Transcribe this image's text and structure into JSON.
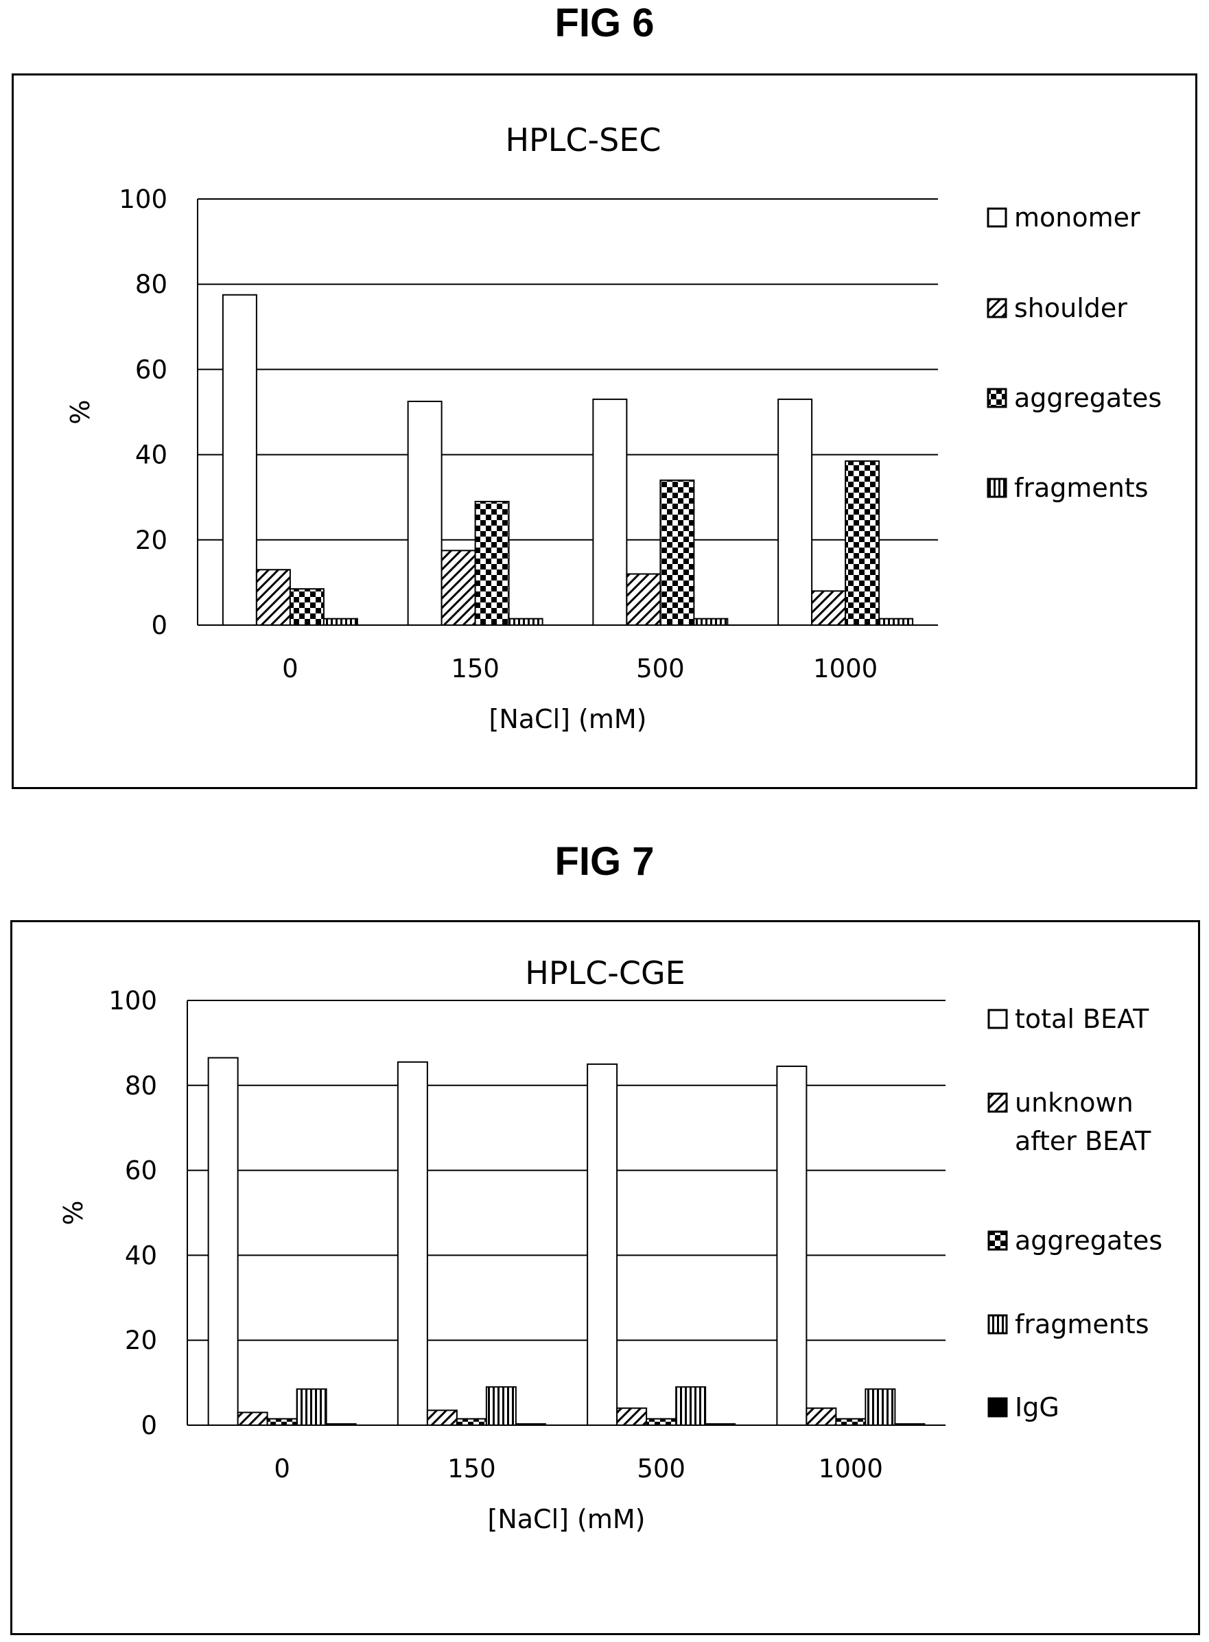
{
  "figures": [
    {
      "label": "FIG 6"
    },
    {
      "label": "FIG 7"
    }
  ],
  "chart_data": [
    {
      "type": "bar",
      "title": "HPLC-SEC",
      "xlabel": "[NaCl] (mM)",
      "ylabel": "%",
      "categories": [
        "0",
        "150",
        "500",
        "1000"
      ],
      "ylim": [
        0,
        100
      ],
      "yticks": [
        0,
        20,
        40,
        60,
        80,
        100
      ],
      "grid": true,
      "legend": "right",
      "series": [
        {
          "name": "monomer",
          "pattern": "empty",
          "values": [
            77.5,
            52.5,
            53,
            53
          ]
        },
        {
          "name": "shoulder",
          "pattern": "diagonal",
          "values": [
            13,
            17.5,
            12,
            8
          ]
        },
        {
          "name": "aggregates",
          "pattern": "checker",
          "values": [
            8.5,
            29,
            34,
            38.5
          ]
        },
        {
          "name": "fragments",
          "pattern": "vertical",
          "values": [
            1.5,
            1.5,
            1.5,
            1.5
          ]
        }
      ]
    },
    {
      "type": "bar",
      "title": "HPLC-CGE",
      "xlabel": "[NaCl] (mM)",
      "ylabel": "%",
      "categories": [
        "0",
        "150",
        "500",
        "1000"
      ],
      "ylim": [
        0,
        100
      ],
      "yticks": [
        0,
        20,
        40,
        60,
        80,
        100
      ],
      "grid": true,
      "legend": "right",
      "series": [
        {
          "name": "total BEAT",
          "pattern": "empty",
          "values": [
            86.5,
            85.5,
            85,
            84.5
          ]
        },
        {
          "name": "unknown after BEAT",
          "legend_lines": [
            "unknown",
            "after BEAT"
          ],
          "pattern": "diagonal",
          "values": [
            3,
            3.5,
            4,
            4
          ]
        },
        {
          "name": "aggregates",
          "pattern": "checker",
          "values": [
            1.5,
            1.5,
            1.5,
            1.5
          ]
        },
        {
          "name": "fragments",
          "pattern": "vertical",
          "values": [
            8.5,
            9,
            9,
            8.5
          ]
        },
        {
          "name": "IgG",
          "pattern": "solid",
          "values": [
            0.3,
            0.3,
            0.3,
            0.3
          ]
        }
      ]
    }
  ]
}
